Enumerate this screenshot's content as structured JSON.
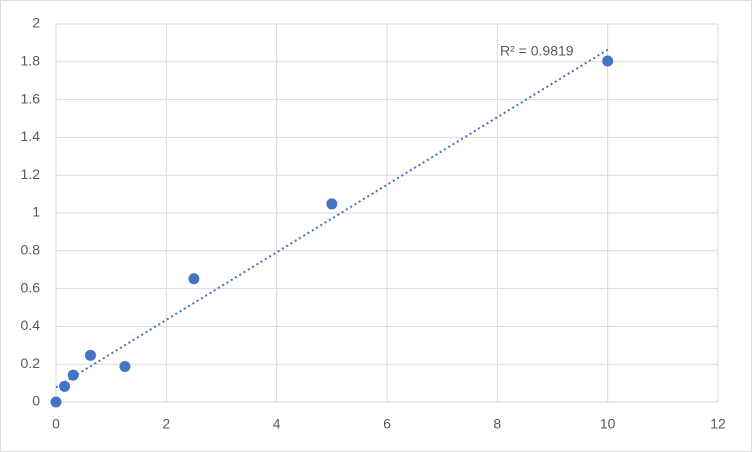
{
  "chart_data": {
    "type": "scatter",
    "annotation": "R² = 0.9819",
    "x": [
      0,
      0.156,
      0.313,
      0.625,
      1.25,
      2.5,
      5,
      10
    ],
    "series": [
      {
        "color": "#4472c4",
        "values": [
          0,
          0.083,
          0.142,
          0.247,
          0.188,
          0.652,
          1.048,
          1.804
        ]
      }
    ],
    "xlim": [
      0,
      12
    ],
    "xticks": [
      0,
      2,
      4,
      6,
      8,
      10,
      12
    ],
    "ylim": [
      0,
      2
    ],
    "yticks": [
      0,
      0.2,
      0.4,
      0.6,
      0.8,
      1,
      1.2,
      1.4,
      1.6,
      1.8,
      2
    ],
    "grid": true,
    "trendline": "linear"
  }
}
